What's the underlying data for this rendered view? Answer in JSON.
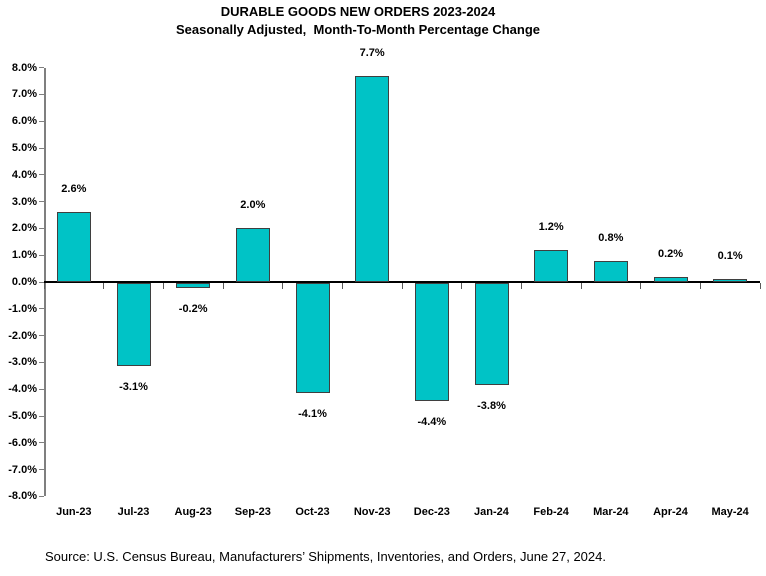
{
  "header": {
    "title": "DURABLE GOODS NEW ORDERS 2023-2024",
    "subtitle": "Seasonally Adjusted,  Month-To-Month Percentage Change"
  },
  "footer": {
    "source": "Source: U.S. Census Bureau, Manufacturers’ Shipments, Inventories, and Orders, June 27, 2024."
  },
  "chart_data": {
    "type": "bar",
    "title": "DURABLE GOODS NEW ORDERS 2023-2024",
    "subtitle": "Seasonally Adjusted,  Month-To-Month Percentage Change",
    "categories": [
      "Jun-23",
      "Jul-23",
      "Aug-23",
      "Sep-23",
      "Oct-23",
      "Nov-23",
      "Dec-23",
      "Jan-24",
      "Feb-24",
      "Mar-24",
      "Apr-24",
      "May-24"
    ],
    "values": [
      2.6,
      -3.1,
      -0.2,
      2.0,
      -4.1,
      7.7,
      -4.4,
      -3.8,
      1.2,
      0.8,
      0.2,
      0.1
    ],
    "data_labels": [
      "2.6%",
      "-3.1%",
      "-0.2%",
      "2.0%",
      "-4.1%",
      "7.7%",
      "-4.4%",
      "-3.8%",
      "1.2%",
      "0.8%",
      "0.2%",
      "0.1%"
    ],
    "xlabel": "",
    "ylabel": "",
    "ylim": [
      -8,
      8
    ],
    "ytick_step": 1.0,
    "ytick_labels": [
      "8.0%",
      "7.0%",
      "6.0%",
      "5.0%",
      "4.0%",
      "3.0%",
      "2.0%",
      "1.0%",
      "0.0%",
      "-1.0%",
      "-2.0%",
      "-3.0%",
      "-4.0%",
      "-5.0%",
      "-6.0%",
      "-7.0%",
      "-8.0%"
    ],
    "grid": false,
    "legend": false,
    "colors": {
      "bar_fill": "#00C3C6",
      "bar_border": "#3F3F3F",
      "axis_line": "#7F7F7F",
      "zero_line": "#000000",
      "tick": "#595959",
      "text": "#000000"
    }
  }
}
